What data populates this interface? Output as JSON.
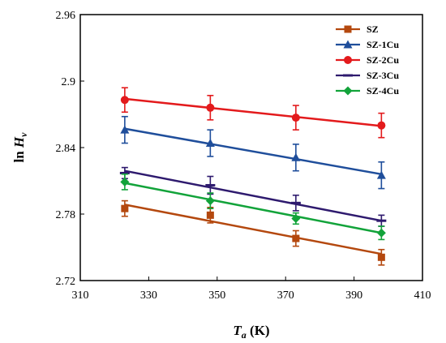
{
  "chart_data": {
    "type": "line",
    "xlabel_main": "T",
    "xlabel_sub": "a",
    "xlabel_unit": " (K)",
    "ylabel_main": "ln ",
    "ylabel_var": "H",
    "ylabel_sub": "v",
    "xlim": [
      310,
      410
    ],
    "ylim": [
      2.72,
      2.96
    ],
    "xticks": [
      310,
      330,
      350,
      370,
      390,
      410
    ],
    "xtick_labels": [
      "310",
      "330",
      "350",
      "370",
      "390",
      "410"
    ],
    "yticks": [
      2.72,
      2.78,
      2.84,
      2.9,
      2.96
    ],
    "ytick_labels": [
      "2.72",
      "2.78",
      "2.84",
      "2.9",
      "2.96"
    ],
    "legend_position": "top-right",
    "x": [
      323,
      348,
      373,
      398
    ],
    "series": [
      {
        "name": "SZ",
        "color": "#b4480e",
        "marker": "square",
        "values": [
          2.785,
          2.779,
          2.758,
          2.741
        ],
        "errors": [
          0.007,
          0.007,
          0.007,
          0.007
        ],
        "fit": [
          2.7885,
          2.744
        ]
      },
      {
        "name": "SZ-1Cu",
        "color": "#1f4e9b",
        "marker": "triangle",
        "values": [
          2.856,
          2.844,
          2.831,
          2.815
        ],
        "errors": [
          0.012,
          0.012,
          0.012,
          0.012
        ],
        "fit": [
          2.857,
          2.816
        ]
      },
      {
        "name": "SZ-2Cu",
        "color": "#e31a1c",
        "marker": "circle",
        "values": [
          2.883,
          2.876,
          2.867,
          2.86
        ],
        "errors": [
          0.011,
          0.011,
          0.011,
          0.011
        ],
        "fit": [
          2.884,
          2.8595
        ]
      },
      {
        "name": "SZ-3Cu",
        "color": "#2e1a6e",
        "marker": "dash",
        "values": [
          2.817,
          2.806,
          2.79,
          2.774
        ],
        "errors": [
          0.005,
          0.008,
          0.007,
          0.005
        ],
        "fit": [
          2.819,
          2.774
        ]
      },
      {
        "name": "SZ-4Cu",
        "color": "#12a33a",
        "marker": "diamond",
        "values": [
          2.809,
          2.792,
          2.776,
          2.763
        ],
        "errors": [
          0.007,
          0.007,
          0.005,
          0.006
        ],
        "fit": [
          2.808,
          2.763
        ]
      }
    ]
  }
}
